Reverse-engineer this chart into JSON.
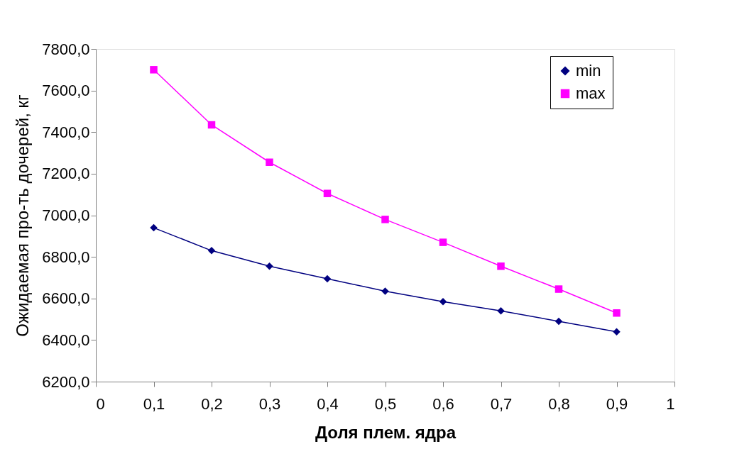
{
  "chart_data": {
    "type": "line",
    "xlabel": "Доля плем. ядра",
    "ylabel": "Ожидаемая про-ть дочерей, кг",
    "x": [
      0.1,
      0.2,
      0.3,
      0.4,
      0.5,
      0.6,
      0.7,
      0.8,
      0.9
    ],
    "series": [
      {
        "name": "min",
        "color": "#000080",
        "marker": "diamond",
        "values": [
          6940,
          6830,
          6755,
          6695,
          6635,
          6585,
          6540,
          6490,
          6440
        ]
      },
      {
        "name": "max",
        "color": "#ff00ff",
        "marker": "square",
        "values": [
          7700,
          7435,
          7255,
          7105,
          6980,
          6870,
          6755,
          6645,
          6530
        ]
      }
    ],
    "xlim": [
      0,
      1
    ],
    "xticks": [
      0,
      {
        "value": 0.1,
        "label": "0,1"
      },
      {
        "value": 0.2,
        "label": "0,2"
      },
      {
        "value": 0.3,
        "label": "0,3"
      },
      {
        "value": 0.4,
        "label": "0,4"
      },
      {
        "value": 0.5,
        "label": "0,5"
      },
      {
        "value": 0.6,
        "label": "0,6"
      },
      {
        "value": 0.7,
        "label": "0,7"
      },
      {
        "value": 0.8,
        "label": "0,8"
      },
      {
        "value": 0.9,
        "label": "0,9"
      },
      1
    ],
    "ylim": [
      6200,
      7800
    ],
    "yticks": [
      {
        "value": 6200,
        "label": "6200,0"
      },
      {
        "value": 6400,
        "label": "6400,0"
      },
      {
        "value": 6600,
        "label": "6600,0"
      },
      {
        "value": 6800,
        "label": "6800,0"
      },
      {
        "value": 7000,
        "label": "7000,0"
      },
      {
        "value": 7200,
        "label": "7200,0"
      },
      {
        "value": 7400,
        "label": "7400,0"
      },
      {
        "value": 7600,
        "label": "7600,0"
      },
      {
        "value": 7800,
        "label": "7800,0"
      }
    ],
    "grid": false,
    "legend": "top right",
    "line_style": "solid"
  }
}
